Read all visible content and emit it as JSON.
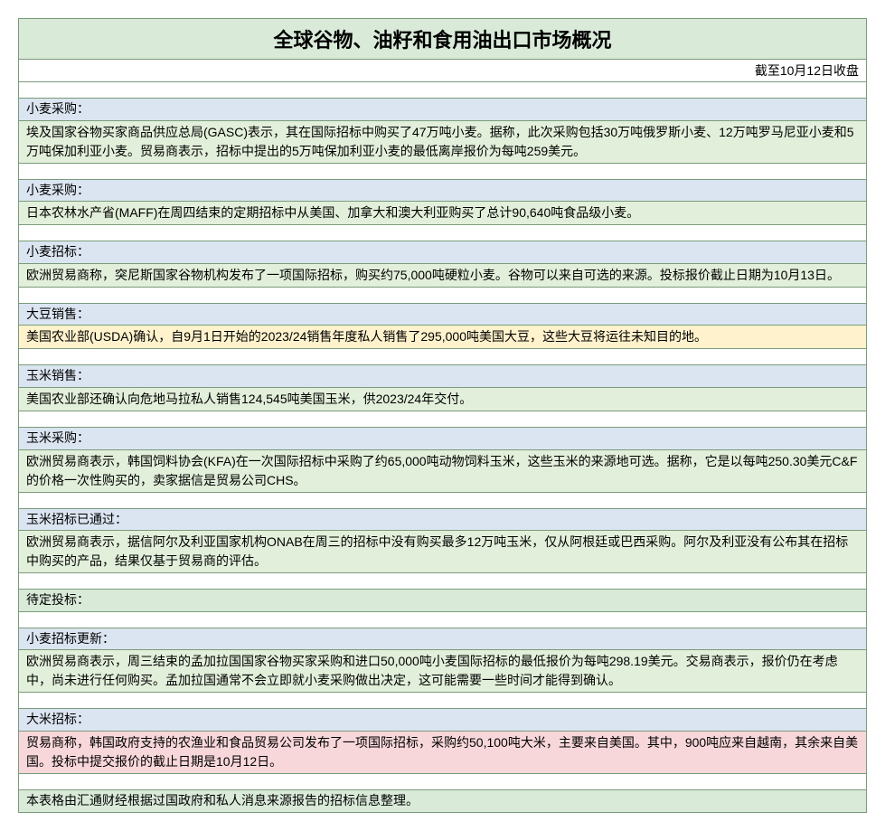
{
  "title": "全球谷物、油籽和食用油出口市场概况",
  "subtitle": "截至10月12日收盘",
  "colors": {
    "border": "#7a9b7a",
    "title_bg": "#d9ead9",
    "blue": "#dbe5f1",
    "green": "#e2efda",
    "yellow": "#fff2cc",
    "pink": "#f8d7da",
    "teal": "#d9ead9",
    "white": "#ffffff"
  },
  "sections": [
    {
      "header": "小麦采购：",
      "header_bg": "blue",
      "content": "埃及国家谷物买家商品供应总局(GASC)表示，其在国际招标中购买了47万吨小麦。据称，此次采购包括30万吨俄罗斯小麦、12万吨罗马尼亚小麦和5万吨保加利亚小麦。贸易商表示，招标中提出的5万吨保加利亚小麦的最低离岸报价为每吨259美元。",
      "content_bg": "green"
    },
    {
      "header": "小麦采购：",
      "header_bg": "blue",
      "content": "日本农林水产省(MAFF)在周四结束的定期招标中从美国、加拿大和澳大利亚购买了总计90,640吨食品级小麦。",
      "content_bg": "green"
    },
    {
      "header": "小麦招标：",
      "header_bg": "blue",
      "content": "欧洲贸易商称，突尼斯国家谷物机构发布了一项国际招标，购买约75,000吨硬粒小麦。谷物可以来自可选的来源。投标报价截止日期为10月13日。",
      "content_bg": "green"
    },
    {
      "header": "大豆销售：",
      "header_bg": "blue",
      "content": "美国农业部(USDA)确认，自9月1日开始的2023/24销售年度私人销售了295,000吨美国大豆，这些大豆将运往未知目的地。",
      "content_bg": "yellow"
    },
    {
      "header": "玉米销售：",
      "header_bg": "blue",
      "content": "美国农业部还确认向危地马拉私人销售124,545吨美国玉米，供2023/24年交付。",
      "content_bg": "green"
    },
    {
      "header": "玉米采购：",
      "header_bg": "blue",
      "content": "欧洲贸易商表示，韩国饲料协会(KFA)在一次国际招标中采购了约65,000吨动物饲料玉米，这些玉米的来源地可选。据称，它是以每吨250.30美元C&F的价格一次性购买的，卖家据信是贸易公司CHS。",
      "content_bg": "green"
    },
    {
      "header": "玉米招标已通过：",
      "header_bg": "blue",
      "content": "欧洲贸易商表示，据信阿尔及利亚国家机构ONAB在周三的招标中没有购买最多12万吨玉米，仅从阿根廷或巴西采购。阿尔及利亚没有公布其在招标中购买的产品，结果仅基于贸易商的评估。",
      "content_bg": "green"
    },
    {
      "header": "待定投标：",
      "header_bg": "teal",
      "content": null,
      "content_bg": null
    },
    {
      "header": "小麦招标更新：",
      "header_bg": "blue",
      "content": "欧洲贸易商表示，周三结束的孟加拉国国家谷物买家采购和进口50,000吨小麦国际招标的最低报价为每吨298.19美元。交易商表示，报价仍在考虑中，尚未进行任何购买。孟加拉国通常不会立即就小麦采购做出决定，这可能需要一些时间才能得到确认。",
      "content_bg": "green"
    },
    {
      "header": "大米招标：",
      "header_bg": "blue",
      "content": "贸易商称，韩国政府支持的农渔业和食品贸易公司发布了一项国际招标，采购约50,100吨大米，主要来自美国。其中，900吨应来自越南，其余来自美国。投标中提交报价的截止日期是10月12日。",
      "content_bg": "pink"
    }
  ],
  "footer": "本表格由汇通财经根据过国政府和私人消息来源报告的招标信息整理。"
}
